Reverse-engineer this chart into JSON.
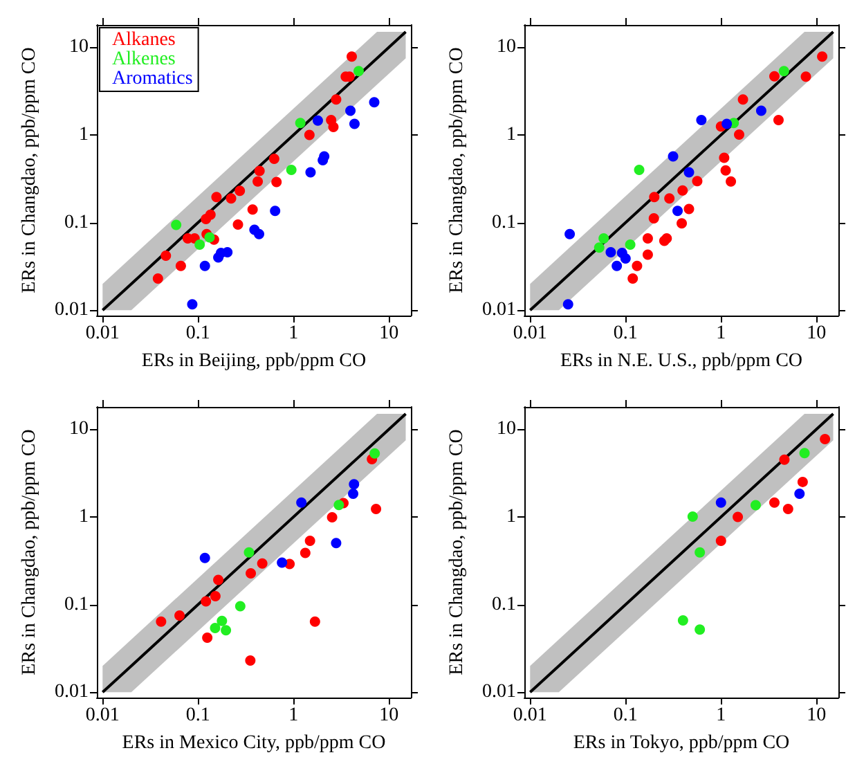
{
  "chart_data": [
    {
      "type": "scatter",
      "xlabel": "ERs in Beijing, ppb/ppm CO",
      "ylabel": "ERs in Changdao, ppb/ppm CO",
      "xlim": [
        0.0087,
        17
      ],
      "ylim": [
        0.0087,
        18
      ],
      "xticks": [
        0.01,
        0.1,
        1,
        10
      ],
      "yticks": [
        0.01,
        0.1,
        1,
        10
      ],
      "log": "xy",
      "grid": false,
      "marker": "circle",
      "legend": "top left",
      "series": [
        {
          "type": "line",
          "marker": "none",
          "color": "#000000",
          "x": [
            0.01,
            0.02,
            7.5,
            15
          ],
          "values": [
            0.01,
            0.02,
            7.5,
            15
          ],
          "lower": [
            0.01,
            0.01,
            3.75,
            7.5
          ],
          "upper": [
            0.02,
            0.04,
            15,
            15
          ]
        },
        {
          "name": "Alkanes",
          "color": "#ff0000",
          "x": [
            0.038,
            0.046,
            0.066,
            0.078,
            0.092,
            0.123,
            0.121,
            0.135,
            0.147,
            0.156,
            0.222,
            0.274,
            0.262,
            0.373,
            0.422,
            0.441,
            0.628,
            0.664,
            1.47,
            2.48,
            2.62,
            2.8,
            3.53,
            3.86,
            4.08
          ],
          "values": [
            0.023,
            0.042,
            0.032,
            0.066,
            0.066,
            0.074,
            0.11,
            0.123,
            0.064,
            0.196,
            0.189,
            0.23,
            0.095,
            0.141,
            0.294,
            0.389,
            0.535,
            0.29,
            1.0,
            1.48,
            1.23,
            2.54,
            4.62,
            4.62,
            7.83
          ]
        },
        {
          "name": "Alkenes",
          "color": "#22ee22",
          "x": [
            0.059,
            0.104,
            0.132,
            0.95,
            1.18,
            4.82
          ],
          "values": [
            0.094,
            0.056,
            0.068,
            0.4,
            1.37,
            5.36
          ]
        },
        {
          "name": "Aromatics",
          "color": "#0000ff",
          "x": [
            0.087,
            0.118,
            0.163,
            0.174,
            0.203,
            0.39,
            0.436,
            0.642,
            1.51,
            1.8,
            2.03,
            2.1,
            3.95,
            4.36,
            7.02
          ],
          "values": [
            0.0117,
            0.032,
            0.04,
            0.045,
            0.046,
            0.083,
            0.074,
            0.136,
            0.375,
            1.46,
            0.516,
            0.569,
            1.89,
            1.34,
            2.36
          ]
        }
      ]
    },
    {
      "type": "scatter",
      "xlabel": "ERs in N.E. U.S., ppb/ppm CO",
      "ylabel": "ERs in Changdao, ppb/ppm CO",
      "xlim": [
        0.0087,
        17
      ],
      "ylim": [
        0.0087,
        18
      ],
      "xticks": [
        0.01,
        0.1,
        1,
        10
      ],
      "yticks": [
        0.01,
        0.1,
        1,
        10
      ],
      "log": "xy",
      "grid": false,
      "marker": "circle",
      "series": [
        {
          "type": "line",
          "marker": "none",
          "color": "#000000",
          "x": [
            0.01,
            0.02,
            7.5,
            15
          ],
          "values": [
            0.01,
            0.02,
            7.5,
            15
          ],
          "lower": [
            0.01,
            0.01,
            3.75,
            7.5
          ],
          "upper": [
            0.02,
            0.04,
            15,
            15
          ]
        },
        {
          "color": "#ff0000",
          "x": [
            0.119,
            0.132,
            0.171,
            0.171,
            0.255,
            0.27,
            0.198,
            0.2,
            0.288,
            0.388,
            0.396,
            0.462,
            0.564,
            1.0,
            1.08,
            1.12,
            1.27,
            1.55,
            1.7,
            3.63,
            4.01,
            7.76,
            11.5
          ],
          "values": [
            0.023,
            0.032,
            0.043,
            0.066,
            0.062,
            0.066,
            0.112,
            0.196,
            0.189,
            0.098,
            0.233,
            0.143,
            0.297,
            1.25,
            0.548,
            0.394,
            0.294,
            1.01,
            2.54,
            4.67,
            1.48,
            4.62,
            7.83
          ]
        },
        {
          "color": "#22ee22",
          "x": [
            0.053,
            0.059,
            0.112,
            0.139,
            1.36,
            4.57
          ],
          "values": [
            0.052,
            0.066,
            0.056,
            0.4,
            1.37,
            5.36
          ]
        },
        {
          "color": "#0000ff",
          "x": [
            0.025,
            0.026,
            0.07,
            0.081,
            0.092,
            0.1,
            0.315,
            0.351,
            0.462,
            0.623,
            1.15,
            2.64
          ],
          "values": [
            0.0117,
            0.074,
            0.046,
            0.032,
            0.045,
            0.039,
            0.569,
            0.136,
            0.375,
            1.48,
            1.34,
            1.89
          ]
        }
      ]
    },
    {
      "type": "scatter",
      "xlabel": "ERs in Mexico City, ppb/ppm CO",
      "ylabel": "ERs in Changdao, ppb/ppm CO",
      "xlim": [
        0.0087,
        17
      ],
      "ylim": [
        0.0087,
        18
      ],
      "xticks": [
        0.01,
        0.1,
        1,
        10
      ],
      "yticks": [
        0.01,
        0.1,
        1,
        10
      ],
      "log": "xy",
      "grid": false,
      "marker": "circle",
      "series": [
        {
          "type": "line",
          "marker": "none",
          "color": "#000000",
          "x": [
            0.01,
            0.02,
            7.5,
            15
          ],
          "values": [
            0.01,
            0.02,
            7.5,
            15
          ],
          "lower": [
            0.01,
            0.01,
            3.75,
            7.5
          ],
          "upper": [
            0.02,
            0.04,
            15,
            15
          ]
        },
        {
          "color": "#ff0000",
          "x": [
            0.041,
            0.064,
            0.125,
            0.121,
            0.152,
            0.163,
            0.353,
            0.357,
            0.471,
            0.91,
            1.33,
            1.49,
            1.68,
            2.54,
            3.34,
            6.64,
            7.33
          ],
          "values": [
            0.064,
            0.075,
            0.042,
            0.109,
            0.125,
            0.191,
            0.023,
            0.227,
            0.294,
            0.29,
            0.389,
            0.535,
            0.064,
            0.99,
            1.44,
            4.57,
            1.23
          ]
        },
        {
          "color": "#22ee22",
          "x": [
            0.151,
            0.178,
            0.196,
            0.277,
            0.342,
            2.99,
            7.1
          ],
          "values": [
            0.054,
            0.065,
            0.051,
            0.096,
            0.394,
            1.37,
            5.29
          ]
        },
        {
          "color": "#0000ff",
          "x": [
            0.118,
            0.758,
            1.21,
            2.8,
            4.22,
            4.31
          ],
          "values": [
            0.34,
            0.301,
            1.46,
            0.504,
            1.84,
            2.36
          ]
        }
      ]
    },
    {
      "type": "scatter",
      "xlabel": "ERs in Tokyo, ppb/ppm CO",
      "ylabel": "ERs in Changdao, ppb/ppm CO",
      "xlim": [
        0.0087,
        17
      ],
      "ylim": [
        0.0087,
        18
      ],
      "xticks": [
        0.01,
        0.1,
        1,
        10
      ],
      "yticks": [
        0.01,
        0.1,
        1,
        10
      ],
      "log": "xy",
      "grid": false,
      "marker": "circle",
      "series": [
        {
          "type": "line",
          "marker": "none",
          "color": "#000000",
          "x": [
            0.01,
            0.02,
            7.5,
            15
          ],
          "values": [
            0.01,
            0.02,
            7.5,
            15
          ],
          "lower": [
            0.01,
            0.01,
            3.75,
            7.5
          ],
          "upper": [
            0.02,
            0.04,
            15,
            15
          ]
        },
        {
          "color": "#ff0000",
          "x": [
            1.0,
            1.5,
            3.63,
            4.62,
            5.05,
            7.18,
            12.3
          ],
          "values": [
            0.535,
            1.0,
            1.46,
            4.51,
            1.23,
            2.51,
            7.73
          ]
        },
        {
          "color": "#22ee22",
          "x": [
            0.4,
            0.6,
            0.505,
            0.6,
            2.31,
            7.51
          ],
          "values": [
            0.066,
            0.052,
            1.01,
            0.394,
            1.36,
            5.36
          ]
        },
        {
          "color": "#0000ff",
          "x": [
            1.0,
            6.65
          ],
          "values": [
            1.46,
            1.84
          ]
        }
      ]
    }
  ]
}
